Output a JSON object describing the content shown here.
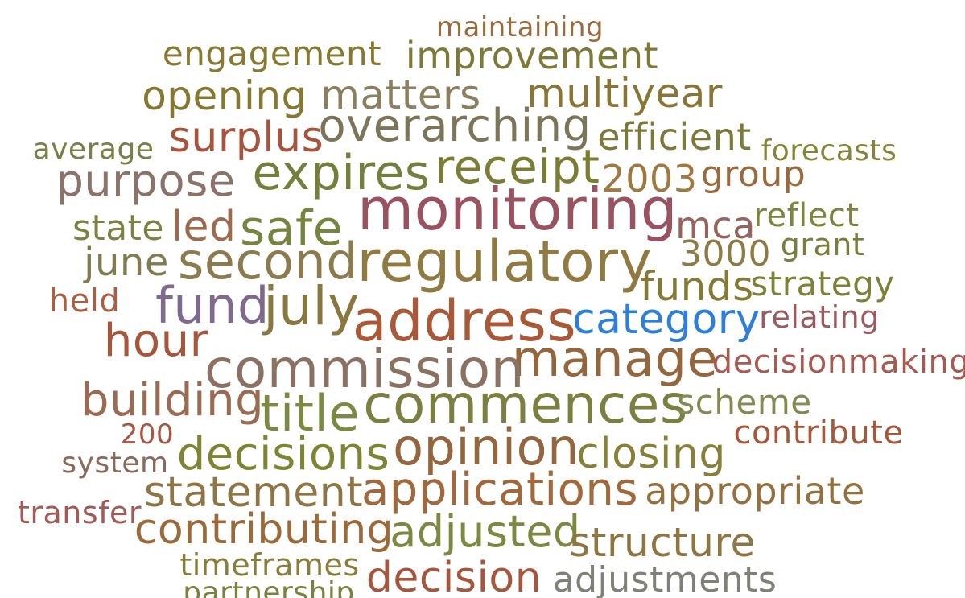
{
  "words": [
    {
      "text": "maintaining",
      "color": "#9a6b3c"
    },
    {
      "text": "engagement",
      "color": "#877832"
    },
    {
      "text": "improvement",
      "color": "#7d7a38"
    },
    {
      "text": "opening",
      "color": "#857830"
    },
    {
      "text": "matters",
      "color": "#8a8060"
    },
    {
      "text": "multiyear",
      "color": "#8a7535"
    },
    {
      "text": "surplus",
      "color": "#a8543c"
    },
    {
      "text": "overarching",
      "color": "#7b7659"
    },
    {
      "text": "efficient",
      "color": "#7b7a3a"
    },
    {
      "text": "average",
      "color": "#7a7f45"
    },
    {
      "text": "forecasts",
      "color": "#858538"
    },
    {
      "text": "receipt",
      "color": "#7b7d35"
    },
    {
      "text": "expires",
      "color": "#757e3d"
    },
    {
      "text": "purpose",
      "color": "#8a736a"
    },
    {
      "text": "2003",
      "color": "#a0793e"
    },
    {
      "text": "group",
      "color": "#9b6a3b"
    },
    {
      "text": "monitoring",
      "color": "#99525f"
    },
    {
      "text": "state",
      "color": "#7d8144"
    },
    {
      "text": "led",
      "color": "#9c6a4d"
    },
    {
      "text": "safe",
      "color": "#75843e"
    },
    {
      "text": "mca",
      "color": "#97645d"
    },
    {
      "text": "reflect",
      "color": "#7d843c"
    },
    {
      "text": "3000",
      "color": "#8c7b45"
    },
    {
      "text": "grant",
      "color": "#7b7d3a"
    },
    {
      "text": "june",
      "color": "#7f7d50"
    },
    {
      "text": "second",
      "color": "#8d7b50"
    },
    {
      "text": "regulatory",
      "color": "#8f7b42"
    },
    {
      "text": "funds",
      "color": "#857a35"
    },
    {
      "text": "strategy",
      "color": "#7d8238"
    },
    {
      "text": "held",
      "color": "#a85f44"
    },
    {
      "text": "fund",
      "color": "#7d6a8d"
    },
    {
      "text": "july",
      "color": "#887840"
    },
    {
      "text": "address",
      "color": "#a85a38"
    },
    {
      "text": "category",
      "color": "#2f7fd6"
    },
    {
      "text": "relating",
      "color": "#9c5a60"
    },
    {
      "text": "hour",
      "color": "#a6563a"
    },
    {
      "text": "manage",
      "color": "#93663c"
    },
    {
      "text": "commission",
      "color": "#8a7262"
    },
    {
      "text": "decisionmaking",
      "color": "#a85a50"
    },
    {
      "text": "building",
      "color": "#9a6a52"
    },
    {
      "text": "commences",
      "color": "#7b8040"
    },
    {
      "text": "title",
      "color": "#7b8a42"
    },
    {
      "text": "scheme",
      "color": "#858a50"
    },
    {
      "text": "200",
      "color": "#a85640"
    },
    {
      "text": "contribute",
      "color": "#a8583a"
    },
    {
      "text": "decisions",
      "color": "#7d8535"
    },
    {
      "text": "opinion",
      "color": "#93663e"
    },
    {
      "text": "closing",
      "color": "#868038"
    },
    {
      "text": "system",
      "color": "#8a6a5a"
    },
    {
      "text": "statement",
      "color": "#8d7545"
    },
    {
      "text": "applications",
      "color": "#a0683b"
    },
    {
      "text": "appropriate",
      "color": "#93703e"
    },
    {
      "text": "transfer",
      "color": "#a25a55"
    },
    {
      "text": "contributing",
      "color": "#9a6a3a"
    },
    {
      "text": "adjusted",
      "color": "#7b8a40"
    },
    {
      "text": "structure",
      "color": "#8e7642"
    },
    {
      "text": "timeframes",
      "color": "#8a7d3a"
    },
    {
      "text": "decision",
      "color": "#a5573e"
    },
    {
      "text": "adjustments",
      "color": "#808078"
    },
    {
      "text": "partnership",
      "color": "#7e8040"
    }
  ]
}
